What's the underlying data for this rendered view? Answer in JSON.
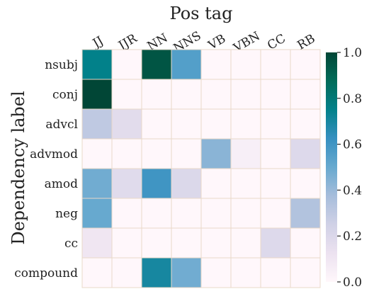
{
  "chart_data": {
    "type": "heatmap",
    "title": "",
    "xlabel": "Pos tag",
    "ylabel": "Dependency label",
    "x_categories": [
      "JJ",
      "JJR",
      "NN",
      "NNS",
      "VB",
      "VBN",
      "CC",
      "RB"
    ],
    "y_categories": [
      "nsubj",
      "conj",
      "advcl",
      "advmod",
      "amod",
      "neg",
      "cc",
      "compound"
    ],
    "values": [
      [
        0.75,
        0.0,
        0.95,
        0.55,
        0.0,
        0.0,
        0.0,
        0.0
      ],
      [
        1.0,
        0.0,
        0.0,
        0.0,
        0.0,
        0.0,
        0.0,
        0.0
      ],
      [
        0.3,
        0.17,
        0.0,
        0.0,
        0.0,
        0.0,
        0.0,
        0.0
      ],
      [
        0.0,
        0.0,
        0.0,
        0.0,
        0.43,
        0.05,
        0.0,
        0.19
      ],
      [
        0.48,
        0.18,
        0.6,
        0.2,
        0.0,
        0.0,
        0.0,
        0.0
      ],
      [
        0.5,
        0.0,
        0.0,
        0.0,
        0.0,
        0.0,
        0.0,
        0.34
      ],
      [
        0.1,
        0.0,
        0.0,
        0.0,
        0.0,
        0.0,
        0.19,
        0.0
      ],
      [
        0.0,
        0.0,
        0.7,
        0.48,
        0.0,
        0.0,
        0.0,
        0.0
      ]
    ],
    "colorbar": {
      "range": [
        0.0,
        1.0
      ],
      "ticks": [
        "0.0",
        "0.2",
        "0.4",
        "0.6",
        "0.8",
        "1.0"
      ],
      "colormap": "PuBuGn",
      "color_stops": [
        "#fff7fb",
        "#ece2f0",
        "#d0d1e6",
        "#a6bddb",
        "#67a9cf",
        "#3690c0",
        "#02818a",
        "#016c59",
        "#014636"
      ]
    },
    "grid_color": "#ead8c8"
  }
}
